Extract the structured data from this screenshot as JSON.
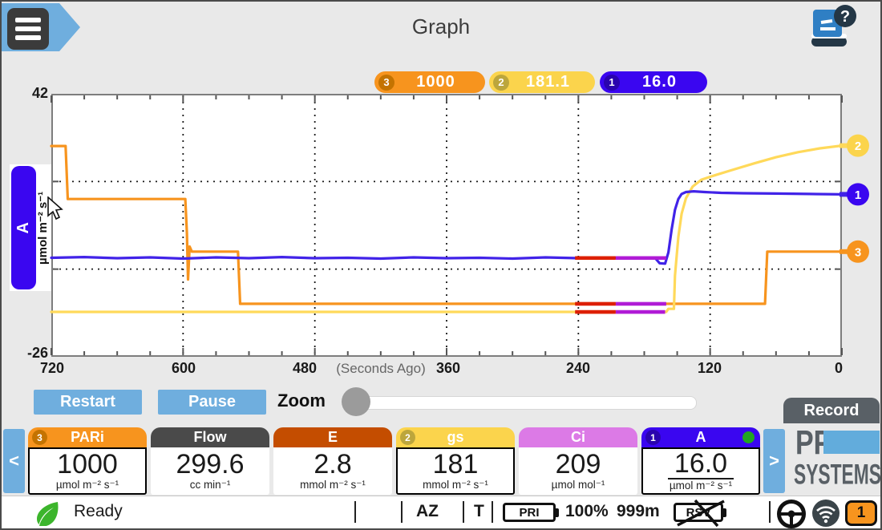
{
  "app": {
    "title": "Graph"
  },
  "legend": [
    {
      "id": "3",
      "value": "1000",
      "color": "#F7941E",
      "badge_color": "#C47300"
    },
    {
      "id": "2",
      "value": "181.1",
      "color": "#FBD44C",
      "badge_color": "#BCA63C"
    },
    {
      "id": "1",
      "value": "16.0",
      "color": "#3A06F0",
      "badge_color": "#2A04AE"
    }
  ],
  "chart_data": {
    "type": "line",
    "x_axis": {
      "label_note": "(Seconds Ago)",
      "range": [
        720,
        0
      ],
      "minor_step": 30,
      "tick_labels": [
        "720",
        "600",
        "480",
        "360",
        "240",
        "120",
        "0"
      ]
    },
    "y_axis": {
      "channel": "A",
      "units": "µmol m⁻² s⁻¹",
      "range": [
        -26,
        42
      ],
      "top_label": "42",
      "bottom_label": "-26"
    },
    "grid": {
      "v_lines_s": [
        600,
        480,
        360,
        240,
        120
      ],
      "h_lines_v": [
        19.33,
        -3.33
      ],
      "style": "dotted"
    },
    "series": [
      {
        "id": "3",
        "name": "PARi",
        "color": "#F7941E",
        "badge_color": "#F7941E",
        "points": [
          [
            720,
            28.5
          ],
          [
            707,
            28.5
          ],
          [
            705,
            14.8
          ],
          [
            598,
            14.8
          ],
          [
            596.5,
            6
          ],
          [
            595.5,
            -6
          ],
          [
            594,
            2.5
          ],
          [
            592,
            1.2
          ],
          [
            550,
            1.2
          ],
          [
            548,
            -12.3
          ],
          [
            70,
            -12.3
          ],
          [
            68,
            1.2
          ],
          [
            0,
            1.2
          ]
        ]
      },
      {
        "id": "2",
        "name": "gs",
        "color": "#FFD95A",
        "badge_color": "#FBD44C",
        "points": [
          [
            720,
            -14.4
          ],
          [
            160,
            -14.4
          ],
          [
            158,
            -13.6
          ],
          [
            153,
            -13.6
          ],
          [
            152,
            -5
          ],
          [
            149,
            5
          ],
          [
            146,
            11
          ],
          [
            142,
            15
          ],
          [
            136,
            18
          ],
          [
            128,
            19.8
          ],
          [
            115,
            21
          ],
          [
            100,
            22.3
          ],
          [
            80,
            24
          ],
          [
            60,
            25.6
          ],
          [
            40,
            26.9
          ],
          [
            20,
            27.9
          ],
          [
            0,
            28.6
          ]
        ]
      },
      {
        "id": "1",
        "name": "A",
        "color": "#4123E8",
        "badge_color": "#3A06F0",
        "points": [
          [
            720,
            -0.4
          ],
          [
            690,
            -0.2
          ],
          [
            660,
            -0.5
          ],
          [
            630,
            -0.3
          ],
          [
            600,
            -0.6
          ],
          [
            570,
            -0.3
          ],
          [
            540,
            -0.5
          ],
          [
            510,
            -0.2
          ],
          [
            480,
            -0.5
          ],
          [
            450,
            -0.4
          ],
          [
            420,
            -0.6
          ],
          [
            390,
            -0.3
          ],
          [
            360,
            -0.5
          ],
          [
            330,
            -0.4
          ],
          [
            300,
            -0.6
          ],
          [
            270,
            -0.3
          ],
          [
            240,
            -0.5
          ],
          [
            210,
            -0.4
          ],
          [
            180,
            -0.4
          ],
          [
            170,
            -0.5
          ],
          [
            166,
            -1.8
          ],
          [
            161,
            -1.9
          ],
          [
            158,
            1
          ],
          [
            155,
            7
          ],
          [
            152,
            12
          ],
          [
            149,
            14.8
          ],
          [
            146,
            16.1
          ],
          [
            142,
            16.6
          ],
          [
            135,
            16.8
          ],
          [
            125,
            16.6
          ],
          [
            110,
            16.4
          ],
          [
            90,
            16.3
          ],
          [
            60,
            16.2
          ],
          [
            30,
            16.1
          ],
          [
            0,
            16.0
          ]
        ]
      }
    ],
    "highlights": [
      {
        "color": "#DD1F00",
        "v": -0.45,
        "from_s": 243,
        "to_s": 206
      },
      {
        "color": "#B01BD6",
        "v": -0.45,
        "from_s": 206,
        "to_s": 160
      },
      {
        "color": "#DD1F00",
        "v": -12.3,
        "from_s": 243,
        "to_s": 206
      },
      {
        "color": "#B01BD6",
        "v": -12.3,
        "from_s": 206,
        "to_s": 160
      },
      {
        "color": "#DD1F00",
        "v": -14.4,
        "from_s": 243,
        "to_s": 206
      },
      {
        "color": "#B01BD6",
        "v": -14.4,
        "from_s": 206,
        "to_s": 161
      }
    ]
  },
  "controls": {
    "restart": "Restart",
    "pause": "Pause",
    "zoom_label": "Zoom",
    "record": "Record",
    "prev": "<",
    "next": ">"
  },
  "cards": [
    {
      "badge": "3",
      "title": "PARi",
      "value": "1000",
      "units": "µmol m⁻² s⁻¹",
      "header_color": "#F7941E",
      "badge_color": "#C47300"
    },
    {
      "badge": "",
      "title": "Flow",
      "value": "299.6",
      "units": "cc min⁻¹",
      "header_color": "#4A4A4A",
      "badge_color": ""
    },
    {
      "badge": "",
      "title": "E",
      "value": "2.8",
      "units": "mmol m⁻² s⁻¹",
      "header_color": "#C44D00",
      "badge_color": ""
    },
    {
      "badge": "2",
      "title": "gs",
      "value": "181",
      "units": "mmol m⁻² s⁻¹",
      "header_color": "#FBD44C",
      "badge_color": "#BCA63C"
    },
    {
      "badge": "",
      "title": "Ci",
      "value": "209",
      "units": "µmol mol⁻¹",
      "header_color": "#DC7AE6",
      "badge_color": ""
    },
    {
      "badge": "1",
      "title": "A",
      "value": "16.0",
      "units": "µmol m⁻² s⁻¹",
      "header_color": "#3A06F0",
      "badge_color": "#2A04AE"
    }
  ],
  "logo": {
    "line1": "PP",
    "line2": "SYSTEMS"
  },
  "status": {
    "ready": "Ready",
    "az": "AZ",
    "t": "T",
    "pri": "PRI",
    "percent": "100%",
    "minutes": "999m",
    "rsv": "RSV",
    "battery_number": "1"
  }
}
